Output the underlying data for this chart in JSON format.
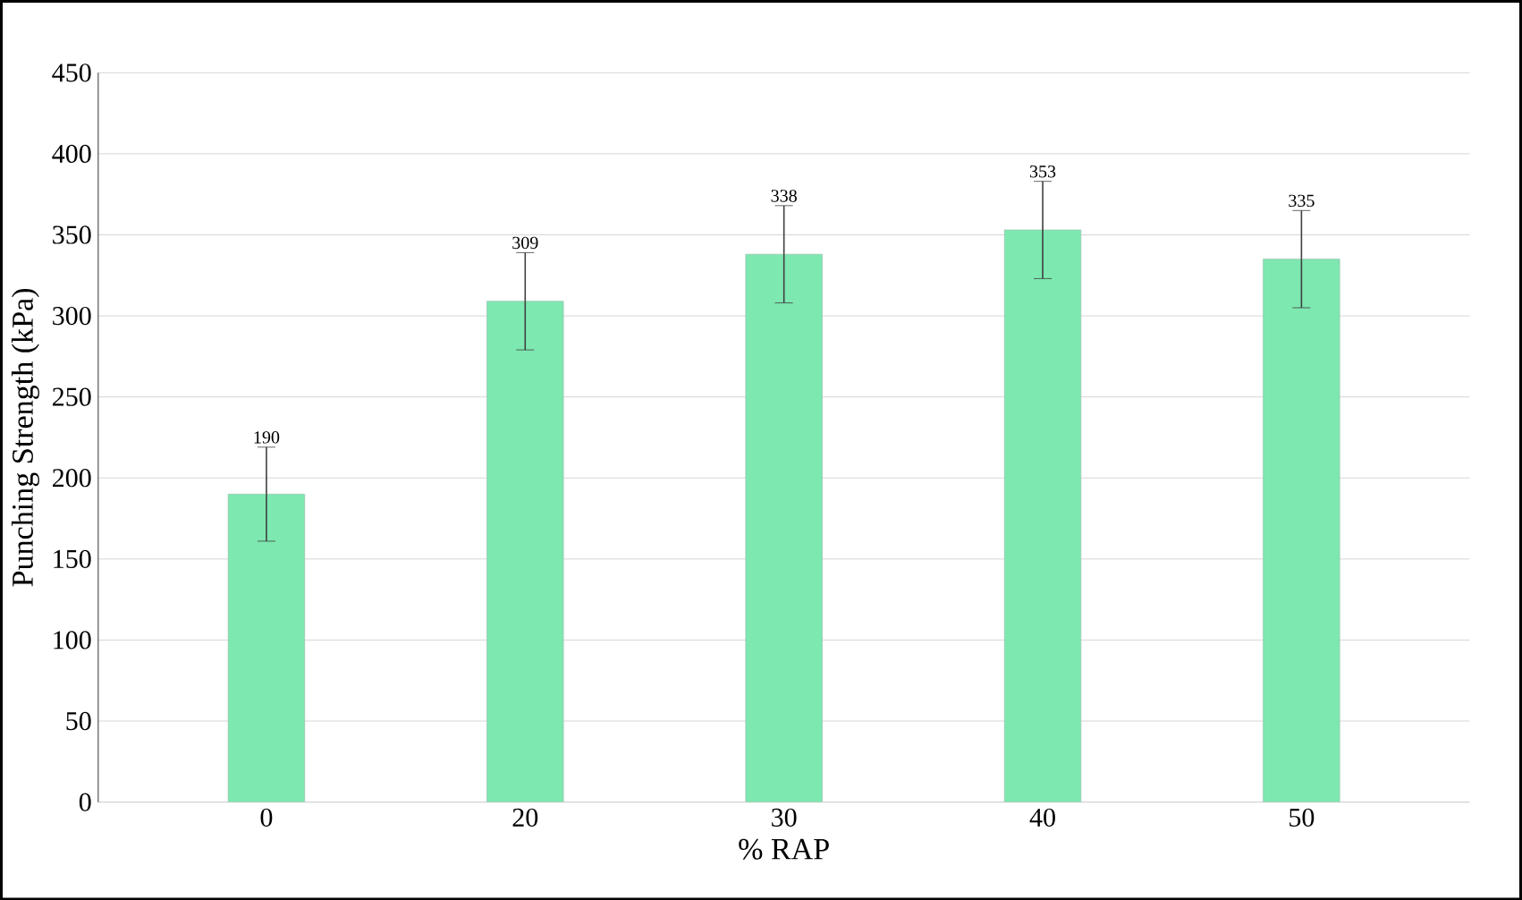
{
  "chart_data": {
    "type": "bar",
    "xlabel": "% RAP",
    "ylabel": "Punching Strength (kPa)",
    "categories": [
      "0",
      "20",
      "30",
      "40",
      "50"
    ],
    "values": [
      190,
      309,
      338,
      353,
      335
    ],
    "errors": [
      29,
      30,
      30,
      30,
      30
    ],
    "color": "#7de8b0",
    "ylim": [
      0,
      450
    ],
    "yticks": [
      0,
      50,
      100,
      150,
      200,
      250,
      300,
      350,
      400,
      450
    ],
    "grid": "y",
    "data_labels": true
  }
}
